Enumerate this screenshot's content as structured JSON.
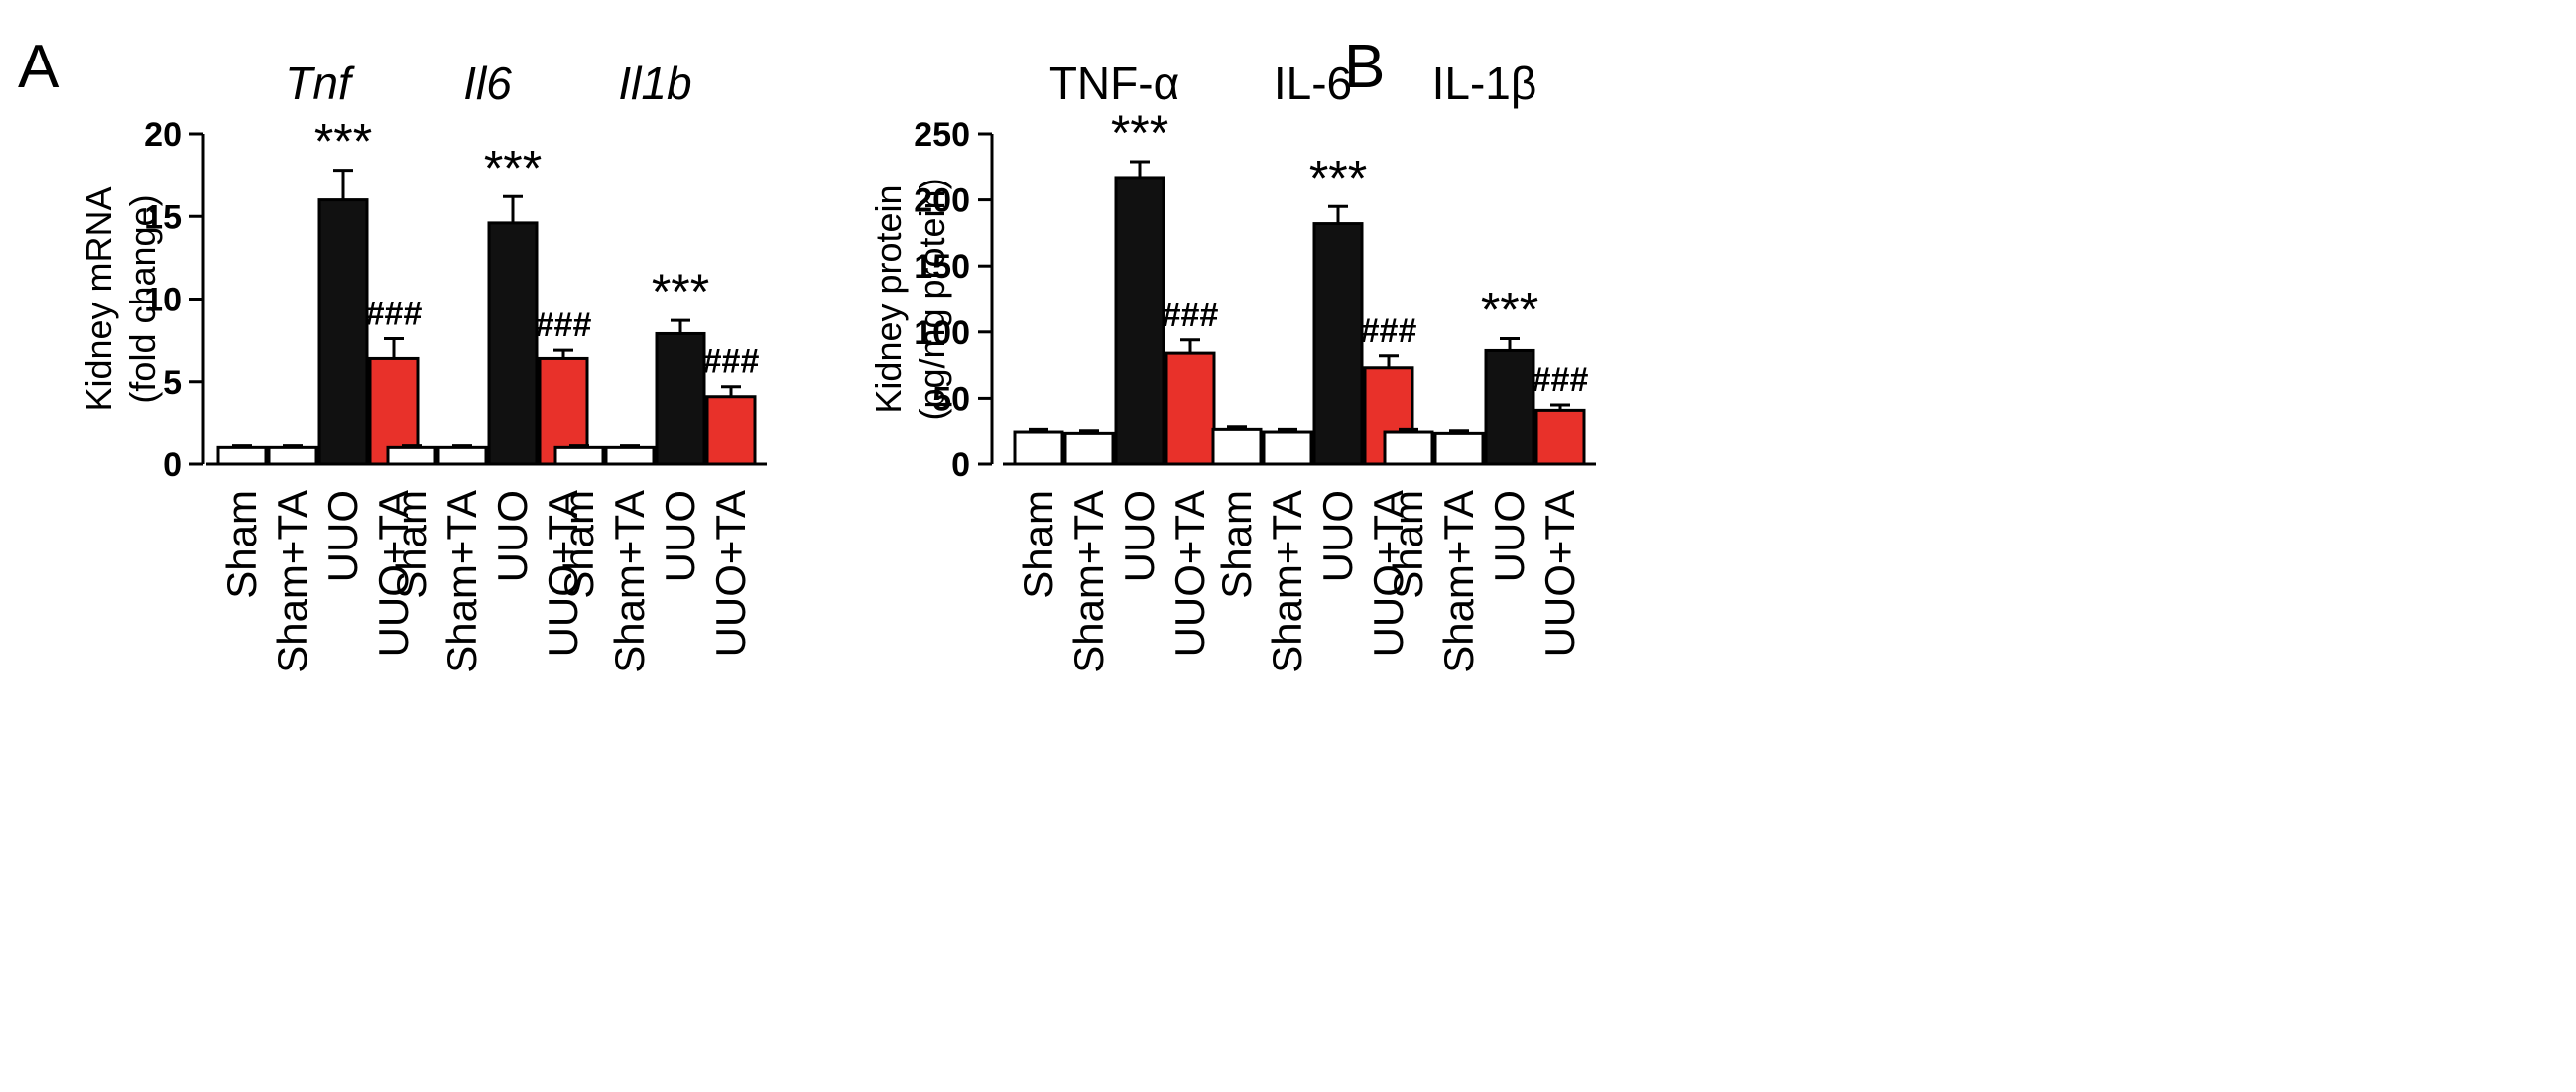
{
  "colors": {
    "sham": "#ffffff",
    "sham_ta": "#ffffff",
    "uuo": "#111111",
    "uuo_ta": "#e8312a",
    "outline": "#000000"
  },
  "chart_data": [
    {
      "panel": "A",
      "type": "bar",
      "ylabel": [
        "Kidney mRNA",
        "(fold change)"
      ],
      "ylim": [
        0,
        20
      ],
      "yticks": [
        0,
        5,
        10,
        15,
        20
      ],
      "categories": [
        "Sham",
        "Sham+TA",
        "UUO",
        "UUO+TA"
      ],
      "groups": [
        {
          "title": "Tnf",
          "italic": true,
          "values": [
            1,
            1,
            16,
            6.4
          ],
          "errors": [
            0.1,
            0.1,
            1.8,
            1.2
          ],
          "annotations": [
            "",
            "",
            "***",
            "###"
          ]
        },
        {
          "title": "Il6",
          "italic": true,
          "values": [
            1,
            1,
            14.6,
            6.4
          ],
          "errors": [
            0.1,
            0.1,
            1.6,
            0.5
          ],
          "annotations": [
            "",
            "",
            "***",
            "###"
          ]
        },
        {
          "title": "Il1b",
          "italic": true,
          "values": [
            1,
            1,
            7.9,
            4.1
          ],
          "errors": [
            0.1,
            0.1,
            0.8,
            0.6
          ],
          "annotations": [
            "",
            "",
            "***",
            "###"
          ]
        }
      ]
    },
    {
      "panel": "B",
      "type": "bar",
      "ylabel": [
        "Kidney protein",
        "(pg/mg protein)"
      ],
      "ylim": [
        0,
        250
      ],
      "yticks": [
        0,
        50,
        100,
        150,
        200,
        250
      ],
      "categories": [
        "Sham",
        "Sham+TA",
        "UUO",
        "UUO+TA"
      ],
      "groups": [
        {
          "title": "TNF-α",
          "italic": false,
          "values": [
            24,
            23,
            217,
            84
          ],
          "errors": [
            2,
            2,
            12,
            10
          ],
          "annotations": [
            "",
            "",
            "***",
            "###"
          ]
        },
        {
          "title": "IL-6",
          "italic": false,
          "values": [
            26,
            24,
            182,
            73
          ],
          "errors": [
            2,
            2,
            13,
            9
          ],
          "annotations": [
            "",
            "",
            "***",
            "###"
          ]
        },
        {
          "title": "IL-1β",
          "italic": false,
          "values": [
            24,
            23,
            86,
            41
          ],
          "errors": [
            2,
            2,
            9,
            4
          ],
          "annotations": [
            "",
            "",
            "***",
            "###"
          ]
        }
      ]
    }
  ]
}
